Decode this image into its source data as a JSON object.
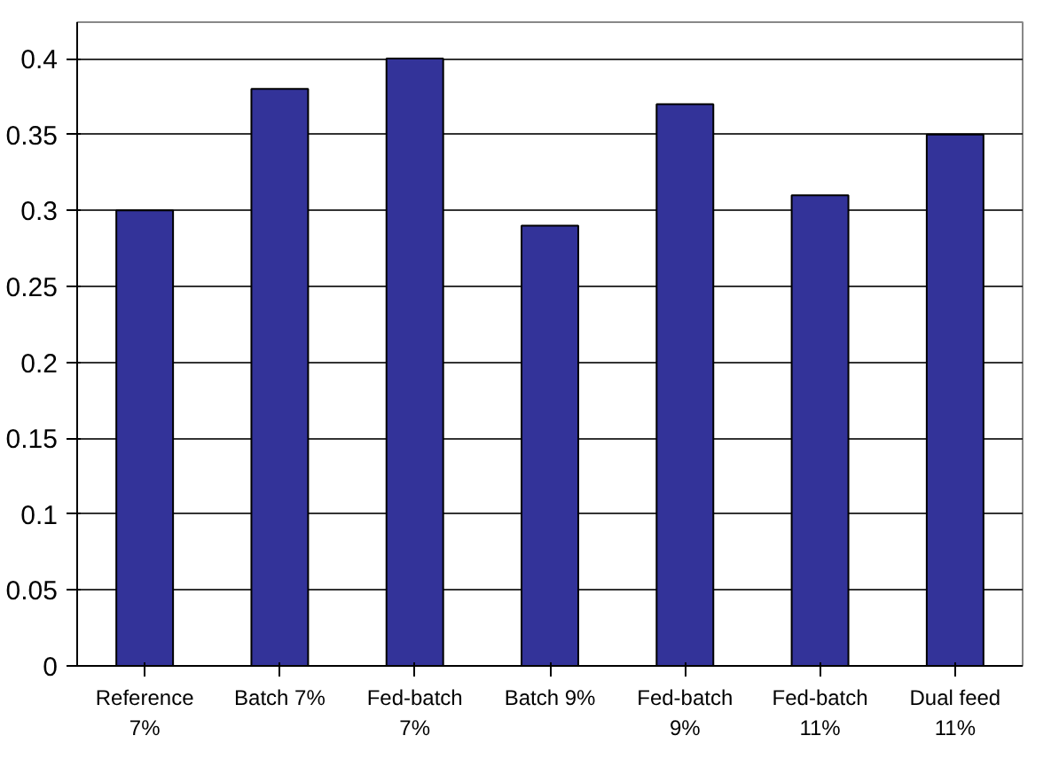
{
  "chart_data": {
    "type": "bar",
    "categories": [
      "Reference\n7%",
      "Batch 7%",
      "Fed-batch\n7%",
      "Batch 9%",
      "Fed-batch\n9%",
      "Fed-batch\n11%",
      "Dual feed\n11%"
    ],
    "values": [
      0.3,
      0.38,
      0.4,
      0.29,
      0.37,
      0.31,
      0.35
    ],
    "color": "#333399",
    "ylim": [
      0,
      0.4
    ],
    "yticks": [
      0,
      0.05,
      0.1,
      0.15,
      0.2,
      0.25,
      0.3,
      0.35,
      0.4
    ],
    "grid": "y"
  }
}
